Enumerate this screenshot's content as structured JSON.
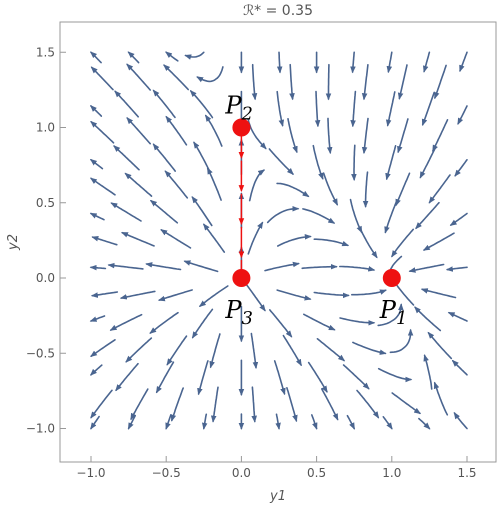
{
  "chart_data": {
    "type": "streamplot",
    "title": "ℛ* = 0.35",
    "xlabel": "y1",
    "ylabel": "y2",
    "xlim": [
      -1.2,
      1.6
    ],
    "ylim": [
      -1.2,
      1.65
    ],
    "x_ticks": [
      "−1.0",
      "−0.5",
      "0.0",
      "0.5",
      "1.0",
      "1.5"
    ],
    "x_tick_values": [
      -1.0,
      -0.5,
      0.0,
      0.5,
      1.0,
      1.5
    ],
    "y_ticks": [
      "−1.0",
      "−0.5",
      "0.0",
      "0.5",
      "1.0",
      "1.5"
    ],
    "y_tick_values": [
      -1.0,
      -0.5,
      0.0,
      0.5,
      1.0,
      1.5
    ],
    "grid": false,
    "stream_domain": {
      "x": [
        -1.0,
        1.5
      ],
      "y": [
        -1.0,
        1.5
      ]
    },
    "stream_color": "#4a6590",
    "equilibria": [
      {
        "name": "P1",
        "label_base": "P",
        "label_sub": "1",
        "x": 1.0,
        "y": 0.0,
        "color": "#ee1111"
      },
      {
        "name": "P2",
        "label_base": "P",
        "label_sub": "2",
        "x": 0.0,
        "y": 1.0,
        "color": "#ee1111"
      },
      {
        "name": "P3",
        "label_base": "P",
        "label_sub": "3",
        "x": 0.0,
        "y": 0.0,
        "color": "#ee1111"
      }
    ],
    "heteroclinic": {
      "from": "P2",
      "to": "P3",
      "x": 0.0,
      "y_from": 1.0,
      "y_to": 0.0,
      "color": "#ee1111"
    }
  }
}
